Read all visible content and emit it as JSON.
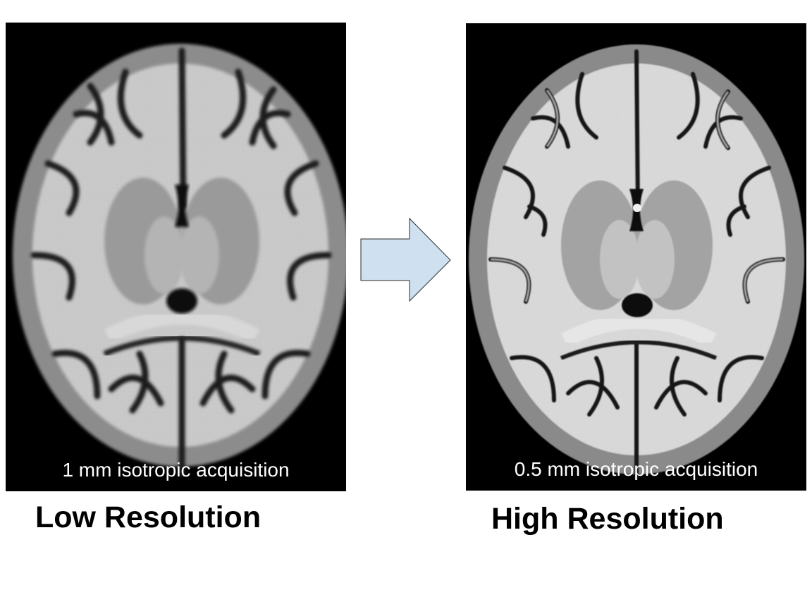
{
  "left_panel": {
    "caption": "1 mm isotropic acquisition",
    "label": "Low Resolution"
  },
  "right_panel": {
    "caption": "0.5 mm isotropic acquisition",
    "label": "High Resolution"
  },
  "arrow": {
    "icon": "right-arrow-icon",
    "fill": "#cfe0f1",
    "stroke": "#2b2b2b"
  },
  "colors": {
    "background": "#ffffff",
    "panel_background": "#000000"
  }
}
